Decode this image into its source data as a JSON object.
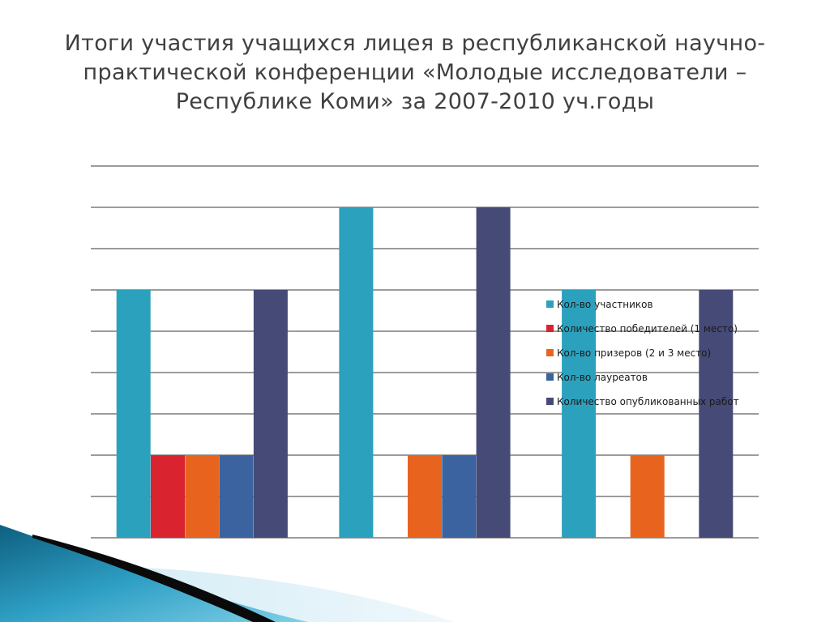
{
  "slide": {
    "title_lines": [
      "Итоги участия учащихся лицея в республиканской научно-",
      "практической конференции «Молодые исследователи –",
      "Республике Коми» за 2007-2010 уч.годы"
    ]
  },
  "chart_data": {
    "type": "bar",
    "title": "",
    "xlabel": "",
    "ylabel": "",
    "categories": [
      "",
      "",
      ""
    ],
    "ylim": [
      0,
      9
    ],
    "grid": true,
    "legend_position": "right",
    "series": [
      {
        "name": "Кол-во участников",
        "color": "#2ba1bd",
        "values": [
          6,
          8,
          6
        ]
      },
      {
        "name": "Количество победителей (1 место)",
        "color": "#d9232e",
        "values": [
          2,
          0,
          0
        ]
      },
      {
        "name": "Кол-во призеров (2 и 3 место)",
        "color": "#e8641e",
        "values": [
          2,
          2,
          2
        ]
      },
      {
        "name": "Кол-во лауреатов",
        "color": "#3a63a0",
        "values": [
          2,
          2,
          0
        ]
      },
      {
        "name": "Количество опубликованных работ",
        "color": "#464a77",
        "values": [
          6,
          8,
          6
        ]
      }
    ]
  }
}
